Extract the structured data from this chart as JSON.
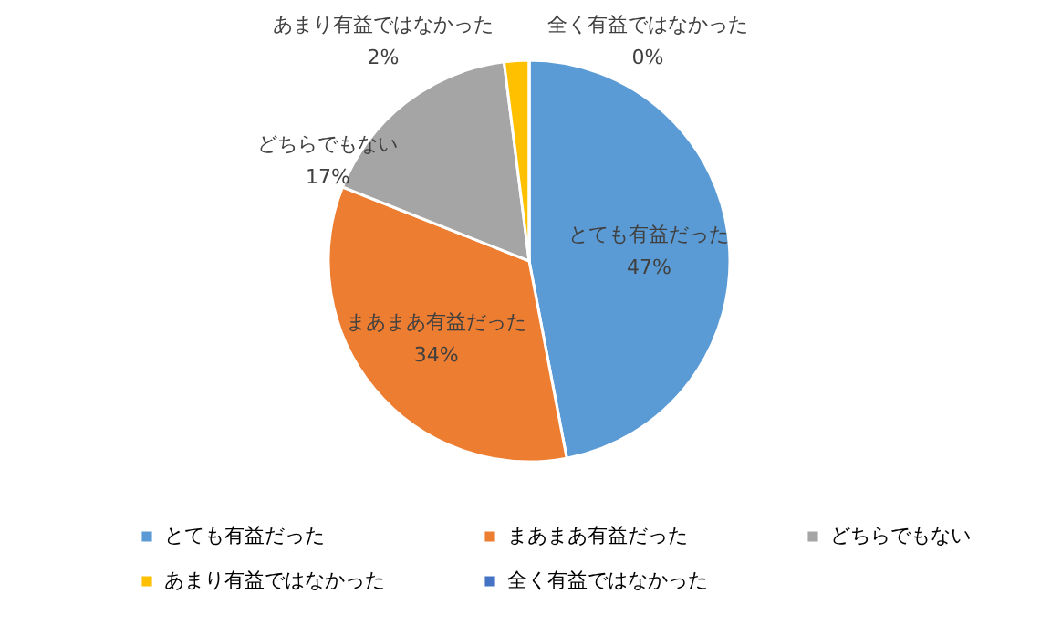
{
  "chart_data": {
    "type": "pie",
    "categories": [
      "とても有益だった",
      "まあまあ有益だった",
      "どちらでもない",
      "あまり有益ではなかった",
      "全く有益ではなかった"
    ],
    "values": [
      47,
      34,
      17,
      2,
      0
    ],
    "colors": [
      "#5b9bd5",
      "#ed7d31",
      "#a5a5a5",
      "#ffc000",
      "#4472c4"
    ],
    "value_labels": [
      "47%",
      "34%",
      "17%",
      "2%",
      "0%"
    ],
    "legend": "bottom"
  }
}
